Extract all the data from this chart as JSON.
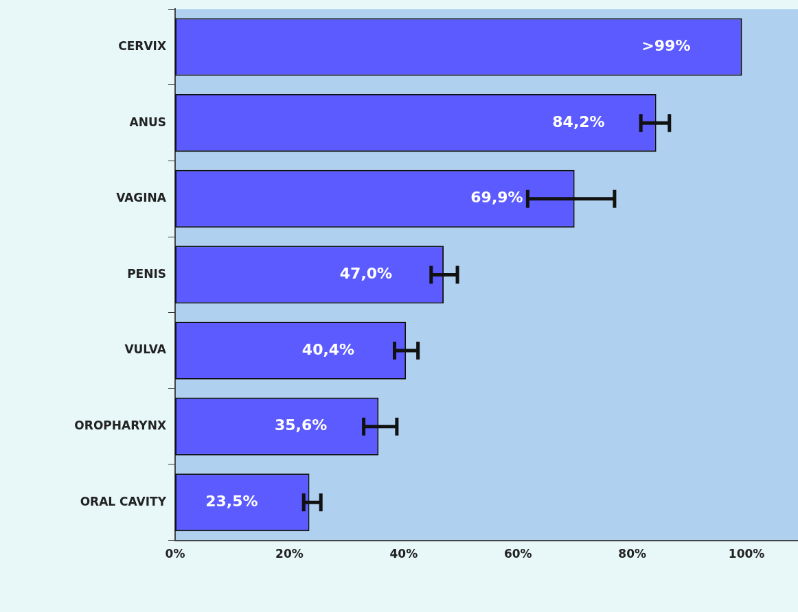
{
  "chart_data": {
    "type": "bar",
    "orientation": "horizontal",
    "categories": [
      "CERVIX",
      "ANUS",
      "VAGINA",
      "PENIS",
      "VULVA",
      "OROPHARYNX",
      "ORAL CAVITY"
    ],
    "values": [
      99.2,
      84.2,
      69.9,
      47.0,
      40.4,
      35.6,
      23.5
    ],
    "value_labels": [
      ">99%",
      "84,2%",
      "69,9%",
      "47,0%",
      "40,4%",
      "35,6%",
      "23,5%"
    ],
    "errors": [
      null,
      [
        81.5,
        86.5
      ],
      [
        61.7,
        76.9
      ],
      [
        44.8,
        49.4
      ],
      [
        38.4,
        42.5
      ],
      [
        33.0,
        38.8
      ],
      [
        22.5,
        25.5
      ]
    ],
    "color": "#5b5bff",
    "xlim": [
      0,
      109
    ],
    "xticks": [
      {
        "value": 0,
        "label": "0%"
      },
      {
        "value": 20,
        "label": "20%"
      },
      {
        "value": 40,
        "label": "40%"
      },
      {
        "value": 60,
        "label": "60%"
      },
      {
        "value": 80,
        "label": "80%"
      },
      {
        "value": 100,
        "label": "100%"
      }
    ],
    "grid": false,
    "legend": false
  }
}
